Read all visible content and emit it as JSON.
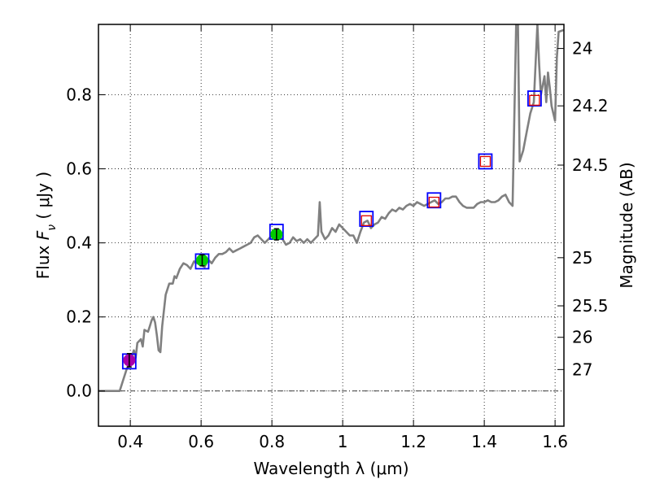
{
  "chart_data": {
    "type": "scatter",
    "xlabel": "Wavelength  λ (μm)",
    "ylabel": "Flux  F_ν  ( μJy )",
    "ylabel_parts": {
      "lead": "Flux  ",
      "italic": "F",
      "sub": "ν",
      "tail": "  ( μJy )"
    },
    "right_ylabel": "Magnitude (AB)",
    "xlim": [
      0.31,
      1.625
    ],
    "ylim": [
      -0.095,
      0.99
    ],
    "grid": true,
    "x_ticks": [
      {
        "value": 0.4,
        "label": "0.4"
      },
      {
        "value": 0.6,
        "label": "0.6"
      },
      {
        "value": 0.8,
        "label": "0.8"
      },
      {
        "value": 1.0,
        "label": "1"
      },
      {
        "value": 1.2,
        "label": "1.2"
      },
      {
        "value": 1.4,
        "label": "1.4"
      },
      {
        "value": 1.6,
        "label": "1.6"
      }
    ],
    "y_ticks": [
      {
        "value": 0.0,
        "label": "0.0"
      },
      {
        "value": 0.2,
        "label": "0.2"
      },
      {
        "value": 0.4,
        "label": "0.4"
      },
      {
        "value": 0.6,
        "label": "0.6"
      },
      {
        "value": 0.8,
        "label": "0.8"
      }
    ],
    "magnitude_ticks": [
      {
        "flux": 0.925,
        "label": "24"
      },
      {
        "flux": 0.77,
        "label": "24.2"
      },
      {
        "flux": 0.61,
        "label": "24.5"
      },
      {
        "flux": 0.36,
        "label": "25"
      },
      {
        "flux": 0.23,
        "label": "25.5"
      },
      {
        "flux": 0.145,
        "label": "26"
      },
      {
        "flux": 0.058,
        "label": "27"
      }
    ],
    "zero_line": {
      "y": 0.0,
      "style": "dash-dot"
    },
    "model_spectrum": {
      "name": "model SED",
      "color": "#808080",
      "points": [
        [
          0.31,
          0.0
        ],
        [
          0.37,
          0.0
        ],
        [
          0.38,
          0.03
        ],
        [
          0.39,
          0.06
        ],
        [
          0.4,
          0.08
        ],
        [
          0.41,
          0.11
        ],
        [
          0.415,
          0.09
        ],
        [
          0.42,
          0.13
        ],
        [
          0.43,
          0.14
        ],
        [
          0.435,
          0.12
        ],
        [
          0.44,
          0.165
        ],
        [
          0.45,
          0.16
        ],
        [
          0.455,
          0.175
        ],
        [
          0.46,
          0.19
        ],
        [
          0.465,
          0.2
        ],
        [
          0.47,
          0.185
        ],
        [
          0.475,
          0.15
        ],
        [
          0.48,
          0.11
        ],
        [
          0.485,
          0.105
        ],
        [
          0.49,
          0.175
        ],
        [
          0.5,
          0.26
        ],
        [
          0.51,
          0.29
        ],
        [
          0.52,
          0.29
        ],
        [
          0.525,
          0.31
        ],
        [
          0.53,
          0.305
        ],
        [
          0.54,
          0.33
        ],
        [
          0.55,
          0.345
        ],
        [
          0.56,
          0.34
        ],
        [
          0.57,
          0.33
        ],
        [
          0.58,
          0.35
        ],
        [
          0.59,
          0.345
        ],
        [
          0.6,
          0.34
        ],
        [
          0.61,
          0.335
        ],
        [
          0.62,
          0.355
        ],
        [
          0.63,
          0.345
        ],
        [
          0.64,
          0.36
        ],
        [
          0.65,
          0.37
        ],
        [
          0.66,
          0.37
        ],
        [
          0.67,
          0.375
        ],
        [
          0.68,
          0.385
        ],
        [
          0.69,
          0.375
        ],
        [
          0.7,
          0.38
        ],
        [
          0.71,
          0.385
        ],
        [
          0.72,
          0.39
        ],
        [
          0.73,
          0.395
        ],
        [
          0.74,
          0.4
        ],
        [
          0.75,
          0.415
        ],
        [
          0.76,
          0.42
        ],
        [
          0.77,
          0.41
        ],
        [
          0.78,
          0.4
        ],
        [
          0.79,
          0.41
        ],
        [
          0.8,
          0.42
        ],
        [
          0.81,
          0.43
        ],
        [
          0.82,
          0.42
        ],
        [
          0.83,
          0.41
        ],
        [
          0.84,
          0.395
        ],
        [
          0.85,
          0.4
        ],
        [
          0.86,
          0.415
        ],
        [
          0.87,
          0.405
        ],
        [
          0.88,
          0.41
        ],
        [
          0.89,
          0.4
        ],
        [
          0.9,
          0.41
        ],
        [
          0.91,
          0.4
        ],
        [
          0.92,
          0.41
        ],
        [
          0.93,
          0.42
        ],
        [
          0.935,
          0.51
        ],
        [
          0.94,
          0.43
        ],
        [
          0.95,
          0.41
        ],
        [
          0.96,
          0.42
        ],
        [
          0.97,
          0.44
        ],
        [
          0.98,
          0.43
        ],
        [
          0.99,
          0.45
        ],
        [
          1.0,
          0.44
        ],
        [
          1.01,
          0.43
        ],
        [
          1.02,
          0.42
        ],
        [
          1.03,
          0.42
        ],
        [
          1.04,
          0.4
        ],
        [
          1.05,
          0.43
        ],
        [
          1.06,
          0.455
        ],
        [
          1.07,
          0.46
        ],
        [
          1.08,
          0.44
        ],
        [
          1.09,
          0.45
        ],
        [
          1.1,
          0.455
        ],
        [
          1.11,
          0.47
        ],
        [
          1.12,
          0.465
        ],
        [
          1.13,
          0.48
        ],
        [
          1.14,
          0.49
        ],
        [
          1.15,
          0.485
        ],
        [
          1.16,
          0.495
        ],
        [
          1.17,
          0.49
        ],
        [
          1.18,
          0.5
        ],
        [
          1.19,
          0.505
        ],
        [
          1.2,
          0.5
        ],
        [
          1.21,
          0.51
        ],
        [
          1.22,
          0.505
        ],
        [
          1.23,
          0.5
        ],
        [
          1.24,
          0.505
        ],
        [
          1.25,
          0.51
        ],
        [
          1.26,
          0.515
        ],
        [
          1.27,
          0.505
        ],
        [
          1.28,
          0.51
        ],
        [
          1.29,
          0.52
        ],
        [
          1.3,
          0.52
        ],
        [
          1.31,
          0.525
        ],
        [
          1.32,
          0.525
        ],
        [
          1.33,
          0.51
        ],
        [
          1.34,
          0.5
        ],
        [
          1.35,
          0.495
        ],
        [
          1.36,
          0.495
        ],
        [
          1.37,
          0.495
        ],
        [
          1.38,
          0.505
        ],
        [
          1.39,
          0.51
        ],
        [
          1.4,
          0.51
        ],
        [
          1.41,
          0.515
        ],
        [
          1.42,
          0.51
        ],
        [
          1.43,
          0.51
        ],
        [
          1.44,
          0.515
        ],
        [
          1.45,
          0.525
        ],
        [
          1.46,
          0.53
        ],
        [
          1.47,
          0.51
        ],
        [
          1.48,
          0.5
        ],
        [
          1.49,
          0.99
        ],
        [
          1.495,
          0.99
        ],
        [
          1.5,
          0.62
        ],
        [
          1.51,
          0.65
        ],
        [
          1.52,
          0.7
        ],
        [
          1.53,
          0.75
        ],
        [
          1.54,
          0.78
        ],
        [
          1.55,
          0.99
        ],
        [
          1.555,
          0.88
        ],
        [
          1.56,
          0.8
        ],
        [
          1.57,
          0.85
        ],
        [
          1.575,
          0.78
        ],
        [
          1.58,
          0.86
        ],
        [
          1.585,
          0.82
        ],
        [
          1.59,
          0.77
        ],
        [
          1.6,
          0.73
        ],
        [
          1.605,
          0.9
        ],
        [
          1.61,
          0.97
        ],
        [
          1.625,
          0.975
        ]
      ]
    },
    "model_photometry": {
      "name": "model magnitudes",
      "color": "#0000ff",
      "marker": "open square",
      "points": [
        {
          "x": 0.397,
          "y": 0.08
        },
        {
          "x": 0.603,
          "y": 0.35
        },
        {
          "x": 0.813,
          "y": 0.43
        },
        {
          "x": 1.067,
          "y": 0.465
        },
        {
          "x": 1.258,
          "y": 0.515
        },
        {
          "x": 1.403,
          "y": 0.62
        },
        {
          "x": 1.542,
          "y": 0.79
        }
      ]
    },
    "observed_points": {
      "name": "observed photometry",
      "points": [
        {
          "x": 0.397,
          "y": 0.083,
          "err": 0.018,
          "color": "#aa00aa",
          "marker": "filled circle"
        },
        {
          "x": 0.603,
          "y": 0.353,
          "err": 0.015,
          "color": "#00cc00",
          "marker": "filled circle"
        },
        {
          "x": 0.813,
          "y": 0.423,
          "err": 0.015,
          "color": "#00cc00",
          "marker": "filled circle"
        },
        {
          "x": 1.067,
          "y": 0.46,
          "err": 0.0,
          "color": "#dd0000",
          "marker": "open square"
        },
        {
          "x": 1.258,
          "y": 0.51,
          "err": 0.0,
          "color": "#dd0000",
          "marker": "open square"
        },
        {
          "x": 1.403,
          "y": 0.62,
          "err": 0.0,
          "color": "#dd0000",
          "marker": "open square"
        },
        {
          "x": 1.542,
          "y": 0.785,
          "err": 0.0,
          "color": "#dd0000",
          "marker": "open square"
        }
      ]
    }
  }
}
